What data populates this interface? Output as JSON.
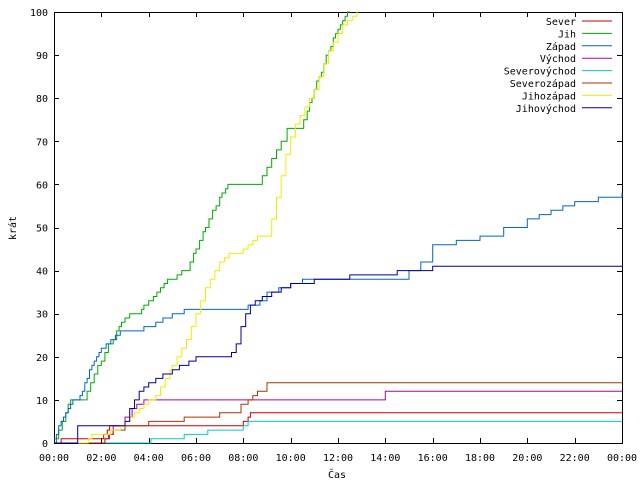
{
  "chart_data": {
    "type": "line",
    "title": "",
    "xlabel": "Čas",
    "ylabel": "krát",
    "xlim": [
      0,
      24
    ],
    "ylim": [
      0,
      100
    ],
    "grid": false,
    "legend_position": "top-right",
    "x_tick_labels": [
      "00:00",
      "02:00",
      "04:00",
      "06:00",
      "08:00",
      "10:00",
      "12:00",
      "14:00",
      "16:00",
      "18:00",
      "20:00",
      "22:00",
      "00:00"
    ],
    "y_ticks": [
      0,
      10,
      20,
      30,
      40,
      50,
      60,
      70,
      80,
      90,
      100
    ],
    "series": [
      {
        "name": "Sever",
        "color": "#cc0000",
        "step": true,
        "x": [
          0.1,
          0.3,
          1.25,
          2.1,
          2.25,
          2.35,
          8.0,
          8.2,
          8.3,
          24.0
        ],
        "y": [
          0,
          1,
          1,
          2,
          3,
          4,
          5,
          6,
          7,
          7
        ]
      },
      {
        "name": "Jih",
        "color": "#00aa00",
        "step": true,
        "x": [
          0.0,
          0.2,
          0.35,
          0.5,
          0.6,
          0.7,
          1.2,
          1.4,
          1.55,
          1.7,
          1.85,
          2.0,
          2.15,
          2.3,
          2.5,
          2.65,
          2.75,
          2.85,
          3.0,
          3.2,
          3.7,
          3.8,
          4.0,
          4.2,
          4.35,
          4.5,
          4.65,
          4.8,
          5.0,
          5.2,
          5.4,
          5.75,
          5.9,
          6.0,
          6.15,
          6.3,
          6.4,
          6.55,
          6.7,
          6.85,
          7.0,
          7.1,
          7.25,
          7.35,
          7.5,
          8.6,
          8.8,
          9.0,
          9.2,
          9.4,
          9.6,
          9.85,
          10.4,
          10.55,
          10.7,
          10.8,
          10.9,
          11.0,
          11.1,
          11.2,
          11.3,
          11.4,
          11.5,
          11.6,
          11.7,
          11.8,
          11.9,
          12.0,
          12.1,
          12.2,
          12.3,
          12.4,
          12.5
        ],
        "y": [
          1,
          3,
          5,
          7,
          9,
          10,
          10,
          12,
          14,
          16,
          18,
          19,
          21,
          23,
          24,
          26,
          27,
          28,
          29,
          30,
          31,
          32,
          33,
          34,
          35,
          36,
          37,
          38,
          38,
          39,
          40,
          42,
          44,
          45,
          47,
          49,
          50,
          52,
          54,
          55,
          57,
          58,
          59,
          60,
          60,
          60,
          62,
          64,
          66,
          68,
          70,
          73,
          73,
          75,
          77,
          79,
          80,
          82,
          84,
          85,
          86,
          88,
          90,
          91,
          92,
          94,
          95,
          96,
          97,
          98,
          99,
          100,
          100
        ]
      },
      {
        "name": "Západ",
        "color": "#0066cc",
        "step": true,
        "x": [
          0.0,
          0.1,
          0.2,
          0.3,
          0.4,
          0.5,
          0.6,
          0.7,
          0.8,
          0.9,
          1.0,
          1.1,
          1.2,
          1.3,
          1.4,
          1.5,
          1.6,
          1.7,
          1.8,
          1.9,
          2.0,
          2.2,
          2.4,
          2.6,
          2.8,
          3.0,
          3.2,
          3.4,
          3.6,
          3.8,
          4.0,
          4.3,
          4.6,
          5.0,
          5.5,
          6.0,
          7.0,
          7.8,
          8.2,
          8.7,
          9.0,
          9.5,
          10.0,
          10.5,
          11.0,
          11.5,
          12.0,
          13.0,
          14.0,
          14.5,
          15.0,
          15.5,
          16.0,
          17.0,
          18.0,
          19.0,
          20.0,
          20.5,
          21.0,
          21.5,
          22.0,
          23.0,
          24.0
        ],
        "y": [
          0,
          2,
          4,
          5,
          6,
          7,
          8,
          9,
          10,
          10,
          10,
          11,
          12,
          14,
          15,
          17,
          18,
          19,
          20,
          21,
          22,
          23,
          24,
          25,
          26,
          26,
          26,
          26,
          26,
          27,
          27,
          28,
          29,
          30,
          31,
          31,
          31,
          31,
          32,
          33,
          35,
          36,
          37,
          38,
          38,
          38,
          38,
          38,
          38,
          38,
          40,
          42,
          46,
          47,
          48,
          50,
          52,
          53,
          54,
          55,
          56,
          57,
          58
        ]
      },
      {
        "name": "Východ",
        "color": "#aa00aa",
        "step": true,
        "x": [
          0.0,
          0.3,
          2.15,
          2.35,
          2.5,
          3.0,
          3.3,
          3.5,
          3.8,
          13.8,
          14.0,
          24.0
        ],
        "y": [
          0,
          0,
          1,
          2,
          4,
          6,
          8,
          9,
          10,
          10,
          12,
          12
        ]
      },
      {
        "name": "Severovýchod",
        "color": "#00cccc",
        "step": true,
        "x": [
          0.0,
          4.0,
          4.1,
          5.5,
          6.5,
          8.0,
          8.2,
          24.0
        ],
        "y": [
          0,
          0,
          1,
          2,
          3,
          4,
          5,
          5
        ]
      },
      {
        "name": "Severozápad",
        "color": "#aa3300",
        "step": true,
        "x": [
          0.0,
          2.0,
          2.15,
          2.3,
          2.5,
          3.0,
          4.0,
          5.5,
          7.0,
          7.9,
          8.2,
          8.4,
          8.6,
          9.0,
          24.0
        ],
        "y": [
          0,
          0,
          1,
          2,
          3,
          4,
          5,
          6,
          7,
          9,
          10,
          11,
          12,
          14,
          14
        ]
      },
      {
        "name": "Jihozápad",
        "color": "#eeee00",
        "step": true,
        "x": [
          0.0,
          1.45,
          1.6,
          1.75,
          2.0,
          2.2,
          2.4,
          2.6,
          2.8,
          3.0,
          3.2,
          3.4,
          3.6,
          3.8,
          4.0,
          4.3,
          4.5,
          4.7,
          4.9,
          5.0,
          5.2,
          5.4,
          5.6,
          5.8,
          6.0,
          6.2,
          6.4,
          6.6,
          6.8,
          7.0,
          7.2,
          7.4,
          7.6,
          8.0,
          8.2,
          8.4,
          8.6,
          8.8,
          9.0,
          9.2,
          9.4,
          9.6,
          9.8,
          10.0,
          10.2,
          10.4,
          10.6,
          10.8,
          11.0,
          11.2,
          11.4,
          11.6,
          11.8,
          12.0,
          12.2,
          12.4,
          12.6,
          12.8
        ],
        "y": [
          0,
          1,
          2,
          2,
          2,
          2,
          3,
          3,
          4,
          5,
          6,
          7,
          8,
          9,
          10,
          11,
          13,
          15,
          17,
          18,
          20,
          22,
          24,
          27,
          30,
          33,
          36,
          38,
          40,
          42,
          43,
          44,
          44,
          45,
          46,
          47,
          48,
          48,
          48,
          52,
          57,
          62,
          67,
          71,
          74,
          76,
          78,
          80,
          82,
          85,
          88,
          91,
          93,
          95,
          97,
          98,
          99,
          100
        ]
      },
      {
        "name": "Jihovýchod",
        "color": "#000099",
        "step": true,
        "x": [
          0.0,
          1.0,
          2.0,
          2.5,
          3.0,
          3.2,
          3.4,
          3.6,
          3.8,
          4.0,
          4.3,
          4.6,
          5.0,
          5.3,
          5.7,
          6.0,
          7.0,
          7.5,
          7.7,
          7.9,
          8.1,
          8.3,
          8.5,
          8.8,
          9.2,
          9.6,
          10.0,
          11.0,
          12.5,
          14.0,
          14.5,
          15.0,
          16.0,
          18.0,
          20.0,
          22.0,
          24.0
        ],
        "y": [
          0,
          4,
          4,
          4,
          5,
          8,
          10,
          12,
          13,
          14,
          15,
          16,
          17,
          18,
          19,
          20,
          20,
          21,
          23,
          27,
          30,
          32,
          33,
          34,
          35,
          36,
          37,
          38,
          39,
          39,
          40,
          40,
          41,
          41,
          41,
          41,
          41
        ]
      }
    ]
  }
}
